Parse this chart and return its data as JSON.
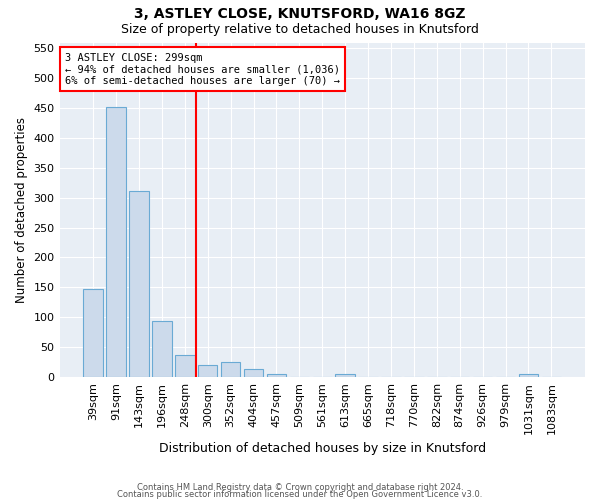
{
  "title1": "3, ASTLEY CLOSE, KNUTSFORD, WA16 8GZ",
  "title2": "Size of property relative to detached houses in Knutsford",
  "xlabel": "Distribution of detached houses by size in Knutsford",
  "ylabel": "Number of detached properties",
  "bar_color": "#ccdaeb",
  "bar_edge_color": "#6aaad4",
  "categories": [
    "39sqm",
    "91sqm",
    "143sqm",
    "196sqm",
    "248sqm",
    "300sqm",
    "352sqm",
    "404sqm",
    "457sqm",
    "509sqm",
    "561sqm",
    "613sqm",
    "665sqm",
    "718sqm",
    "770sqm",
    "822sqm",
    "874sqm",
    "926sqm",
    "979sqm",
    "1031sqm",
    "1083sqm"
  ],
  "values": [
    148,
    452,
    311,
    94,
    37,
    20,
    25,
    13,
    5,
    0,
    0,
    5,
    0,
    0,
    0,
    0,
    0,
    0,
    0,
    5,
    0
  ],
  "red_line_index": 5,
  "annotation_line1": "3 ASTLEY CLOSE: 299sqm",
  "annotation_line2": "← 94% of detached houses are smaller (1,036)",
  "annotation_line3": "6% of semi-detached houses are larger (70) →",
  "ylim": [
    0,
    560
  ],
  "yticks": [
    0,
    50,
    100,
    150,
    200,
    250,
    300,
    350,
    400,
    450,
    500,
    550
  ],
  "footer_line1": "Contains HM Land Registry data © Crown copyright and database right 2024.",
  "footer_line2": "Contains public sector information licensed under the Open Government Licence v3.0.",
  "background_color": "#e8eef5",
  "grid_color": "#ffffff",
  "title1_fontsize": 10,
  "title2_fontsize": 9
}
